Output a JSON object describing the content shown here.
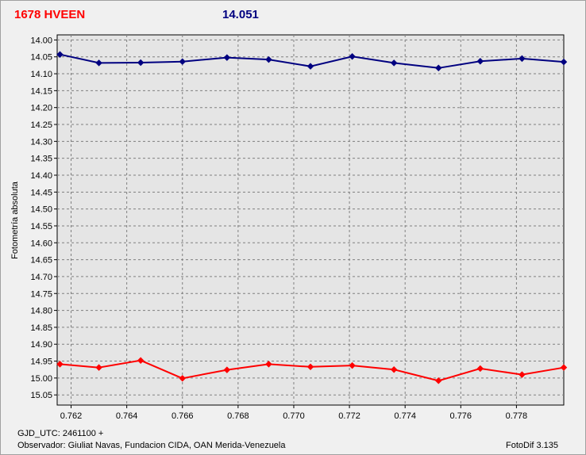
{
  "header": {
    "star_name": "1678 HVEEN",
    "magnitude": "14.051"
  },
  "footer": {
    "gjd": "GJD_UTC: 2461100 +",
    "observer": "Observador: Giuliat Navas, Fundacion CIDA, OAN  Merida-Venezuela",
    "software": "FotoDif 3.135"
  },
  "colors": {
    "star_series": "#000080",
    "comparison_series": "#ff0000",
    "plot_background": "#e5e5e5",
    "grid": "#808080"
  },
  "chart_data": {
    "type": "line",
    "title": "",
    "xlabel": "",
    "ylabel": "Fotometría absoluta",
    "xlim": [
      0.7615,
      0.7797
    ],
    "ylim": [
      15.08,
      13.985
    ],
    "y_inverted": true,
    "grid": true,
    "x_ticks": [
      "0.762",
      "0.764",
      "0.766",
      "0.768",
      "0.770",
      "0.772",
      "0.774",
      "0.776",
      "0.778"
    ],
    "x_tick_values": [
      0.762,
      0.764,
      0.766,
      0.768,
      0.77,
      0.772,
      0.774,
      0.776,
      0.778
    ],
    "y_ticks": [
      "14.00",
      "14.05",
      "14.10",
      "14.15",
      "14.20",
      "14.25",
      "14.30",
      "14.35",
      "14.40",
      "14.45",
      "14.50",
      "14.55",
      "14.60",
      "14.65",
      "14.70",
      "14.75",
      "14.80",
      "14.85",
      "14.90",
      "14.95",
      "15.00",
      "15.05"
    ],
    "y_tick_values": [
      14.0,
      14.05,
      14.1,
      14.15,
      14.2,
      14.25,
      14.3,
      14.35,
      14.4,
      14.45,
      14.5,
      14.55,
      14.6,
      14.65,
      14.7,
      14.75,
      14.8,
      14.85,
      14.9,
      14.95,
      15.0,
      15.05
    ],
    "series": [
      {
        "x": [
          0.7616,
          0.763,
          0.7645,
          0.766,
          0.7676,
          0.7691,
          0.7706,
          0.7721,
          0.7736,
          0.7752,
          0.7767,
          0.7782,
          0.7797
        ],
        "y": [
          14.043,
          14.068,
          14.067,
          14.064,
          14.052,
          14.058,
          14.078,
          14.049,
          14.068,
          14.083,
          14.063,
          14.055,
          14.065
        ]
      },
      {
        "x": [
          0.7616,
          0.763,
          0.7645,
          0.766,
          0.7676,
          0.7691,
          0.7706,
          0.7721,
          0.7736,
          0.7752,
          0.7767,
          0.7782,
          0.7797
        ],
        "y": [
          14.959,
          14.969,
          14.948,
          15.001,
          14.976,
          14.959,
          14.967,
          14.963,
          14.975,
          15.008,
          14.972,
          14.99,
          14.969
        ]
      }
    ]
  }
}
